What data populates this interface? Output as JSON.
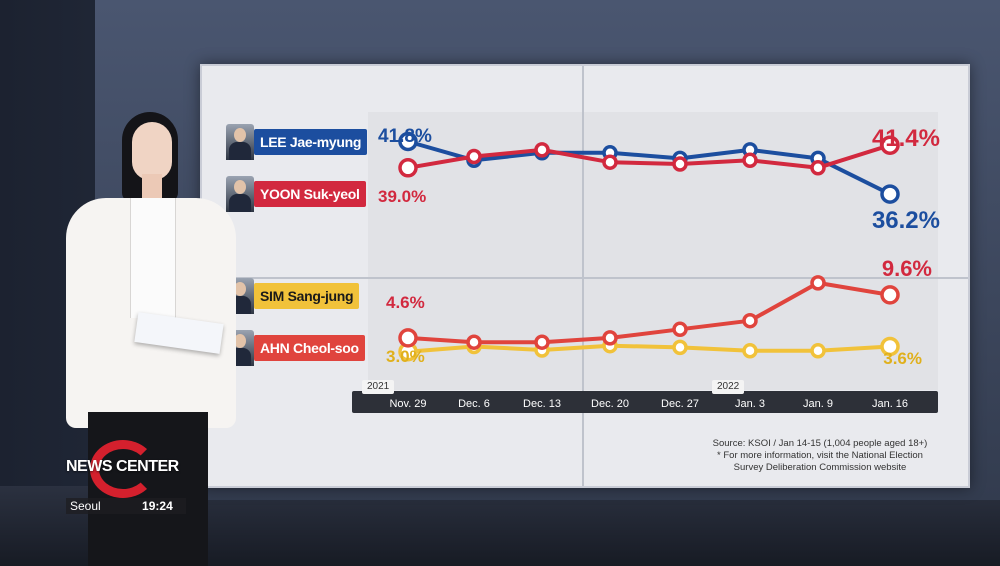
{
  "candidates": [
    {
      "id": "lee",
      "name": "LEE Jae-myung",
      "color": "#1c4e9f"
    },
    {
      "id": "yoon",
      "name": "YOON Suk-yeol",
      "color": "#d2293f"
    },
    {
      "id": "sim",
      "name": "SIM Sang-jung",
      "color": "#f1c23a"
    },
    {
      "id": "ahn",
      "name": "AHN Cheol-soo",
      "color": "#e0443d"
    }
  ],
  "year_tags": {
    "start": "2021",
    "mid": "2022"
  },
  "source": {
    "line1": "Source: KSOI / Jan 14-15 (1,004 people aged 18+)",
    "line2": "* For more information, visit the National Election",
    "line3": "Survey Deliberation Commission website"
  },
  "branding": {
    "logo_news": "NEWS CENTER",
    "city": "Seoul",
    "time": "19:24"
  },
  "chart_data": {
    "type": "line",
    "title": "",
    "categories": [
      "Nov. 29",
      "Dec. 6",
      "Dec. 13",
      "Dec. 20",
      "Dec. 27",
      "Jan. 3",
      "Jan. 9",
      "Jan. 16"
    ],
    "series": [
      {
        "name": "LEE Jae-myung",
        "values": [
          41.8,
          39.8,
          40.6,
          40.6,
          40.0,
          40.9,
          40.0,
          36.2
        ],
        "color": "#1c4e9f",
        "panel": "top"
      },
      {
        "name": "YOON Suk-yeol",
        "values": [
          39.0,
          40.2,
          40.9,
          39.6,
          39.4,
          39.8,
          39.0,
          41.4
        ],
        "color": "#d2293f",
        "panel": "top"
      },
      {
        "name": "SIM Sang-jung",
        "values": [
          3.0,
          3.6,
          3.2,
          3.7,
          3.5,
          3.1,
          3.1,
          3.6
        ],
        "color": "#f1c23a",
        "panel": "bottom"
      },
      {
        "name": "AHN Cheol-soo",
        "values": [
          4.6,
          4.1,
          4.1,
          4.6,
          5.6,
          6.6,
          11.0,
          9.6
        ],
        "color": "#e0443d",
        "panel": "bottom"
      }
    ],
    "labels": {
      "lee_start": "41.8%",
      "yoon_start": "39.0%",
      "yoon_end": "41.4%",
      "lee_end": "36.2%",
      "ahn_start": "4.6%",
      "sim_start": "3.0%",
      "ahn_end": "9.6%",
      "sim_end": "3.6%"
    }
  }
}
